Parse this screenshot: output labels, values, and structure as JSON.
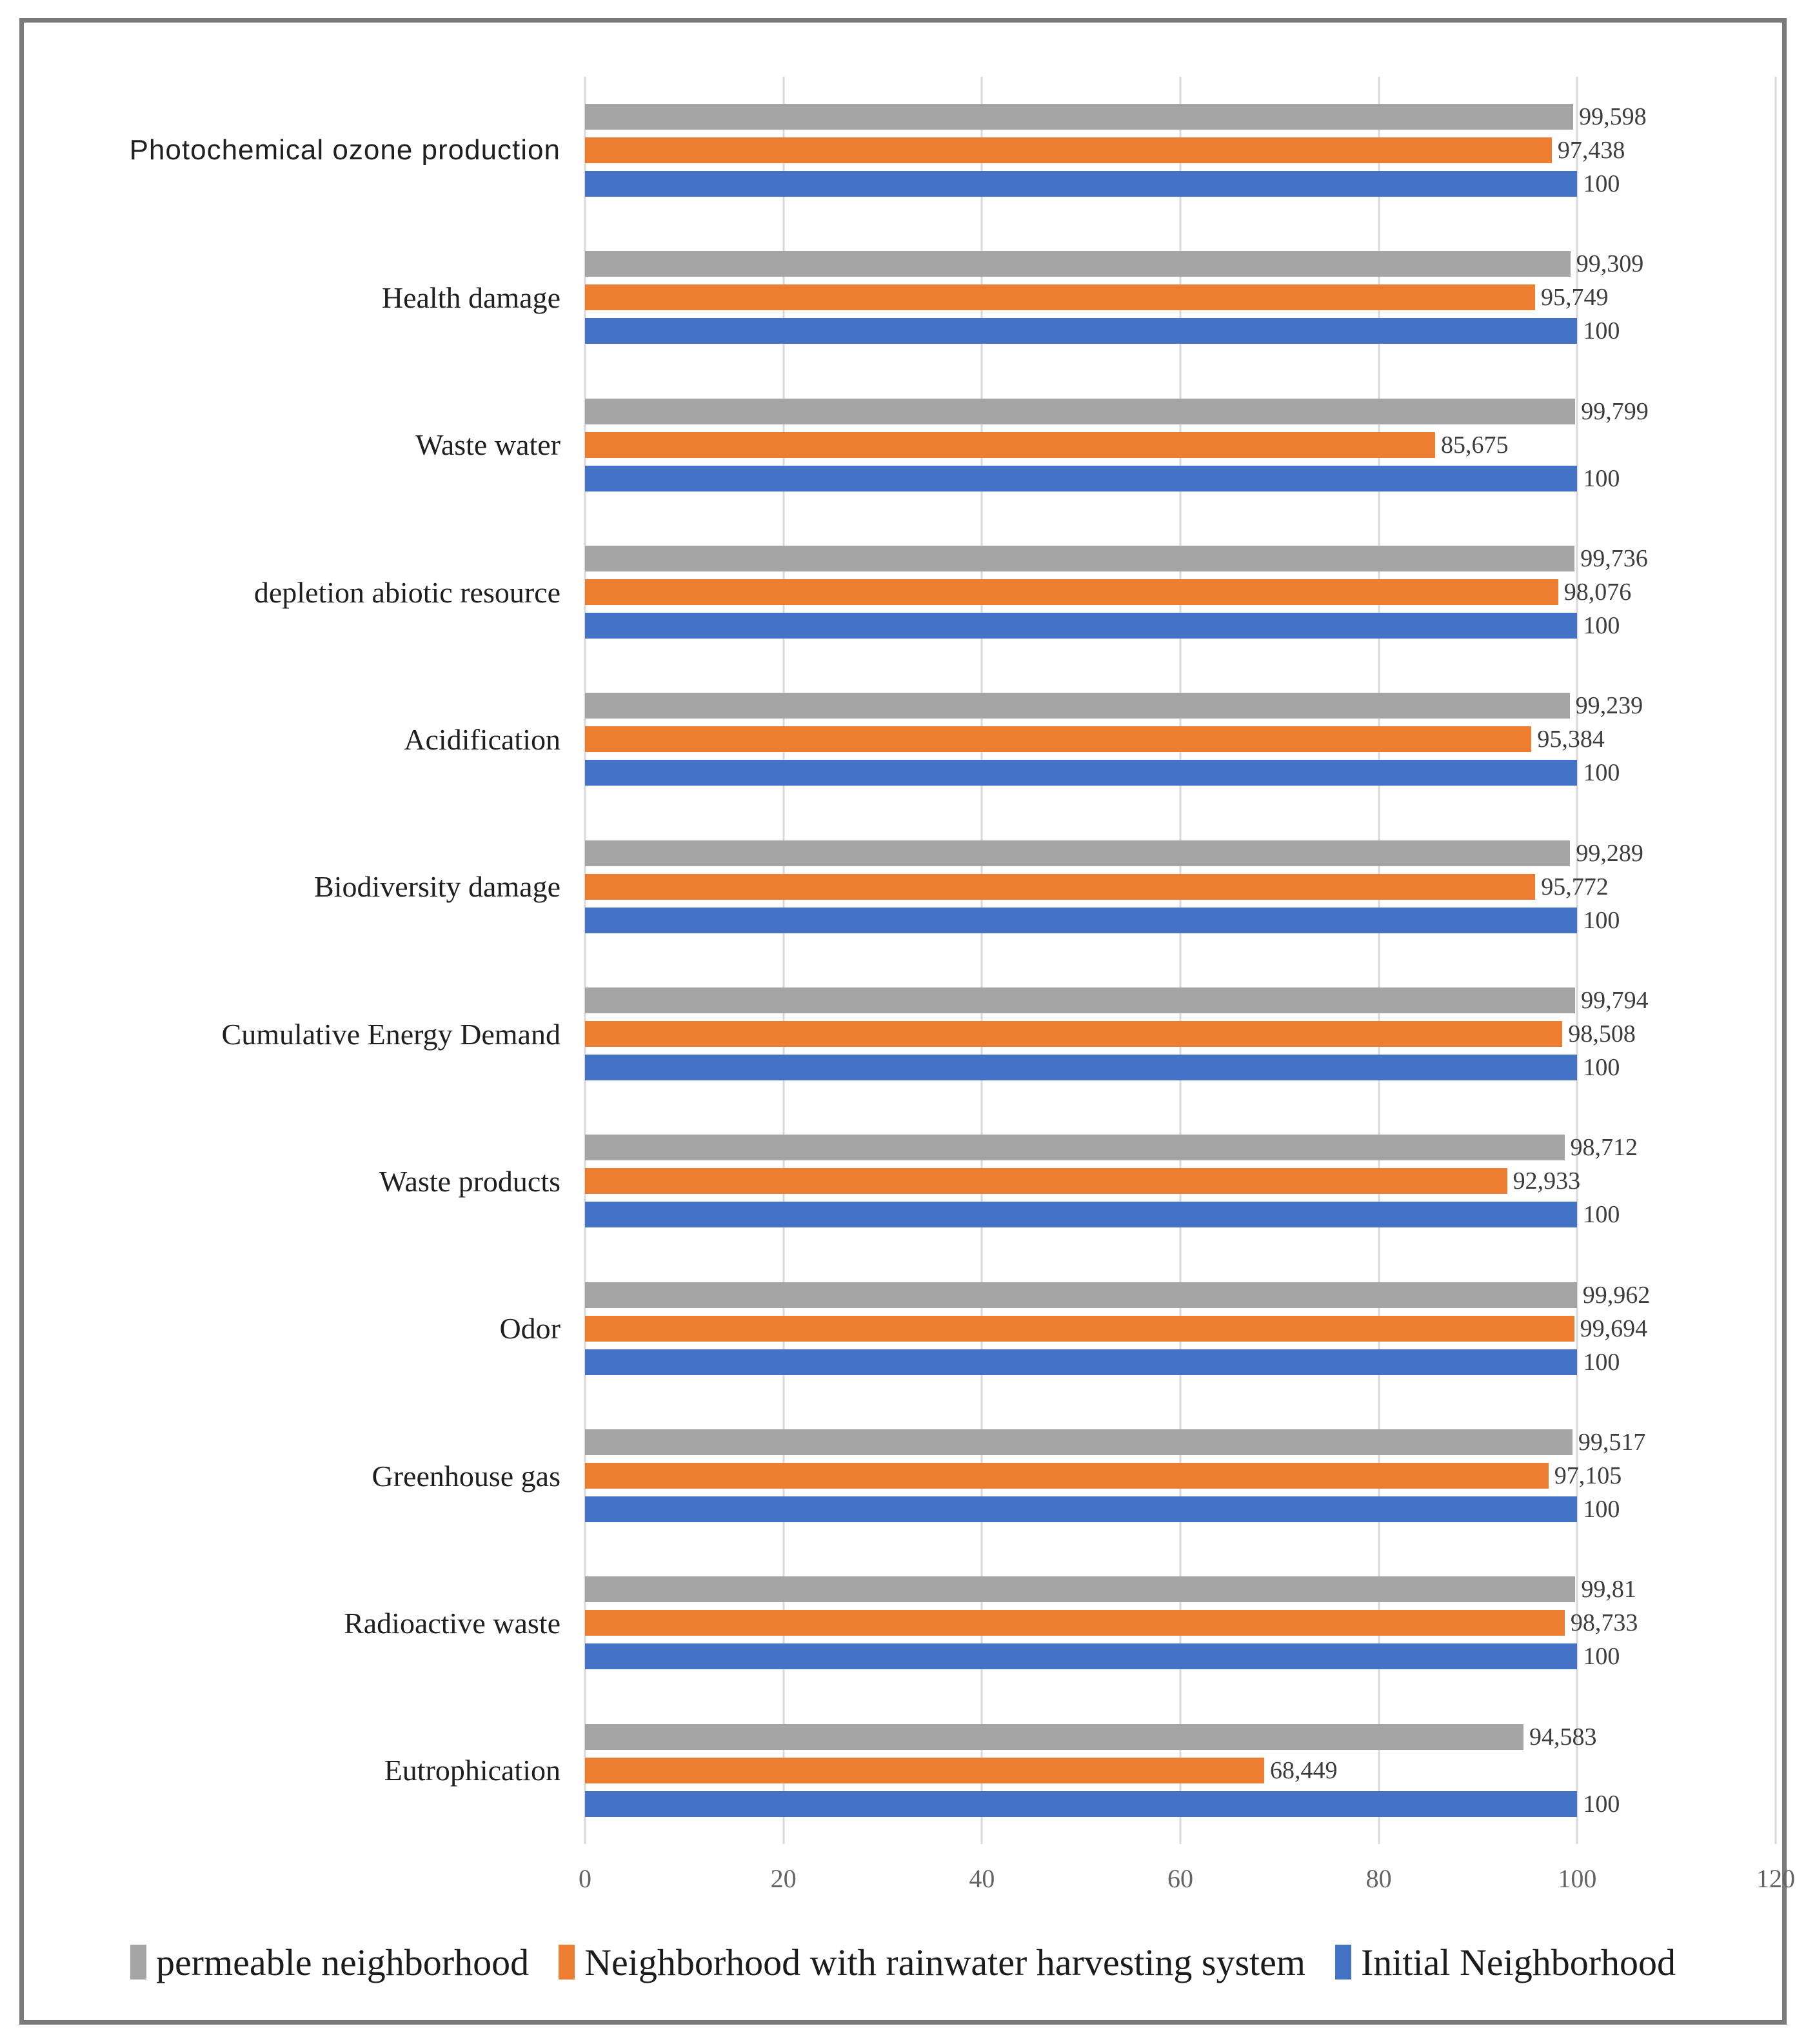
{
  "chart_data": {
    "type": "bar",
    "orientation": "horizontal",
    "title": "",
    "xlabel": "",
    "ylabel": "",
    "xlim": [
      0,
      120
    ],
    "x_ticks": [
      0,
      20,
      40,
      60,
      80,
      100,
      120
    ],
    "x_tick_labels": [
      "0",
      "20",
      "40",
      "60",
      "80",
      "100",
      "120"
    ],
    "grid": true,
    "legend_position": "bottom",
    "decimal_separator": ",",
    "categories": [
      "Photochemical ozone production",
      "Health damage",
      "Waste water",
      "depletion abiotic resource",
      "Acidification",
      "Biodiversity damage",
      "Cumulative Energy Demand",
      "Waste products",
      "Odor",
      "Greenhouse gas",
      "Radioactive waste",
      "Eutrophication"
    ],
    "series": [
      {
        "name": "permeable neighborhood",
        "color": "#a5a5a5",
        "values": [
          99.598,
          99.309,
          99.799,
          99.736,
          99.239,
          99.289,
          99.794,
          98.712,
          99.962,
          99.517,
          99.81,
          94.583
        ],
        "labels": [
          "99,598",
          "99,309",
          "99,799",
          "99,736",
          "99,239",
          "99,289",
          "99,794",
          "98,712",
          "99,962",
          "99,517",
          "99,81",
          "94,583"
        ]
      },
      {
        "name": "Neighborhood with rainwater harvesting system",
        "color": "#ed7d31",
        "values": [
          97.438,
          95.749,
          85.675,
          98.076,
          95.384,
          95.772,
          98.508,
          92.933,
          99.694,
          97.105,
          98.733,
          68.449
        ],
        "labels": [
          "97,438",
          "95,749",
          "85,675",
          "98,076",
          "95,384",
          "95,772",
          "98,508",
          "92,933",
          "99,694",
          "97,105",
          "98,733",
          "68,449"
        ]
      },
      {
        "name": "Initial Neighborhood",
        "color": "#4472c4",
        "values": [
          100,
          100,
          100,
          100,
          100,
          100,
          100,
          100,
          100,
          100,
          100,
          100
        ],
        "labels": [
          "100",
          "100",
          "100",
          "100",
          "100",
          "100",
          "100",
          "100",
          "100",
          "100",
          "100",
          "100"
        ]
      }
    ]
  },
  "colors": {
    "gridline": "#d9d9d9",
    "frame_border": "#7a7a7a",
    "category_text": "#1f1f1f",
    "value_text": "#3d3d3d",
    "tick_text": "#646464",
    "legend_text": "#1b1b1b"
  }
}
